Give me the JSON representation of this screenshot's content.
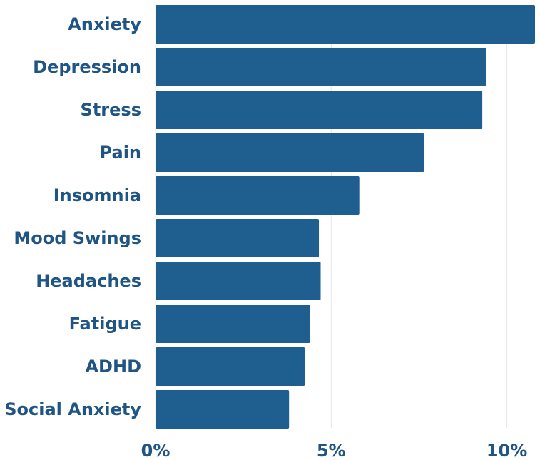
{
  "chart_data": {
    "type": "bar",
    "orientation": "horizontal",
    "categories": [
      "Anxiety",
      "Depression",
      "Stress",
      "Pain",
      "Insomnia",
      "Mood Swings",
      "Headaches",
      "Fatigue",
      "ADHD",
      "Social Anxiety"
    ],
    "values": [
      10.8,
      9.4,
      9.3,
      7.65,
      5.8,
      4.65,
      4.7,
      4.4,
      4.25,
      3.8
    ],
    "x_ticks": [
      0,
      5,
      10
    ],
    "x_tick_labels": [
      "0%",
      "5%",
      "10%"
    ],
    "xlim": [
      0,
      10.8
    ],
    "title": "",
    "xlabel": "",
    "ylabel": "",
    "grid": "vertical",
    "legend": "none",
    "colors": {
      "bar": "#1f5f8f",
      "label": "#1f5585",
      "grid": "#e8e8e8"
    }
  }
}
